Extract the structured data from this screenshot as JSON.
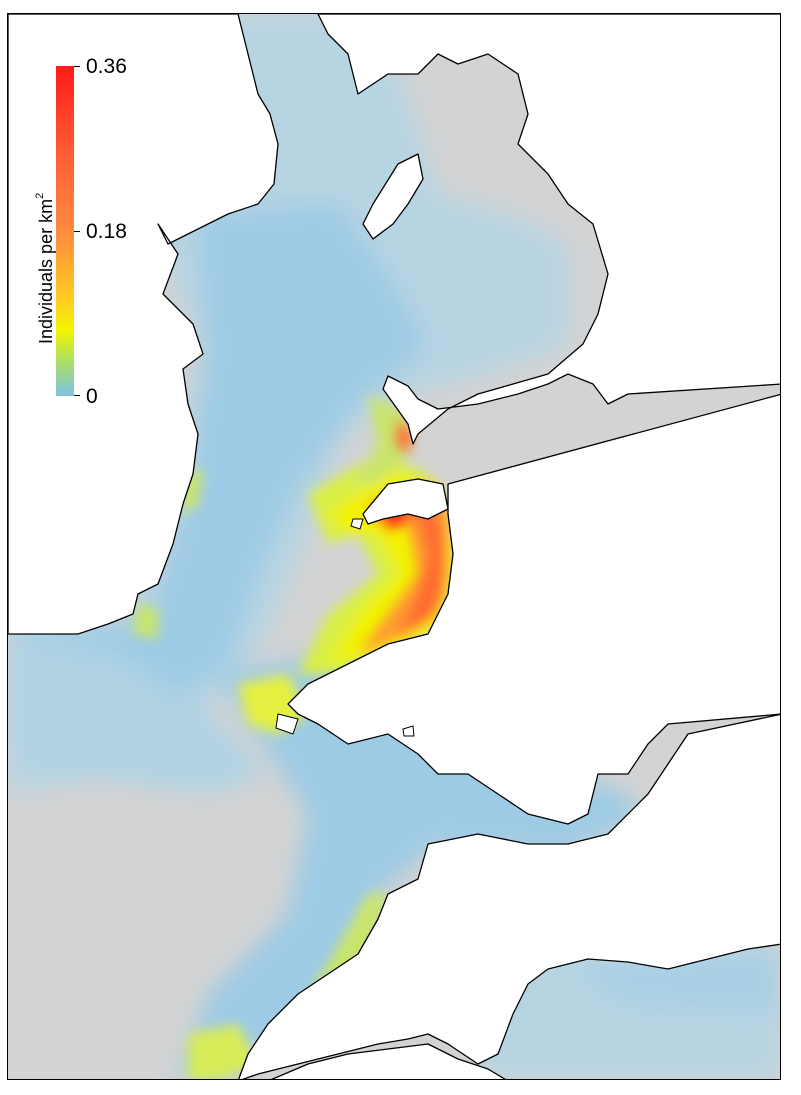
{
  "map": {
    "legend": {
      "title": "Individuals per km",
      "title_superscript": "2",
      "max_label": "0.36",
      "mid_label": "0.18",
      "min_label": "0",
      "scale": {
        "min": 0,
        "mid": 0.18,
        "max": 0.36
      }
    },
    "colors": {
      "land": "#ffffff",
      "no_data": "#d3d3d3",
      "low_density": "#8fcae8",
      "very_low_density": "#b8d8e6",
      "medium_density": "#f2f200",
      "high_density": "#ff8a2a",
      "peak_density": "#ff1a1a",
      "coastline": "#000000"
    }
  }
}
